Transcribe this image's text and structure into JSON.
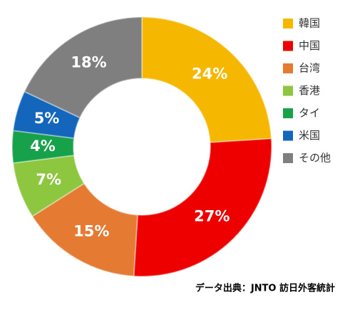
{
  "chart_data": {
    "type": "donut",
    "categories": [
      "韓国",
      "中国",
      "台湾",
      "香港",
      "タイ",
      "米国",
      "その他"
    ],
    "values": [
      24,
      27,
      15,
      7,
      4,
      5,
      18
    ],
    "value_labels": [
      "24%",
      "27%",
      "15%",
      "7%",
      "4%",
      "5%",
      "18%"
    ],
    "colors": [
      "#f5b700",
      "#ee0000",
      "#e57b32",
      "#8dc63f",
      "#16a14a",
      "#1466bd",
      "#7f7f7f"
    ],
    "legend": "right",
    "source": "データ出典：JNTO 訪日外客統計"
  }
}
